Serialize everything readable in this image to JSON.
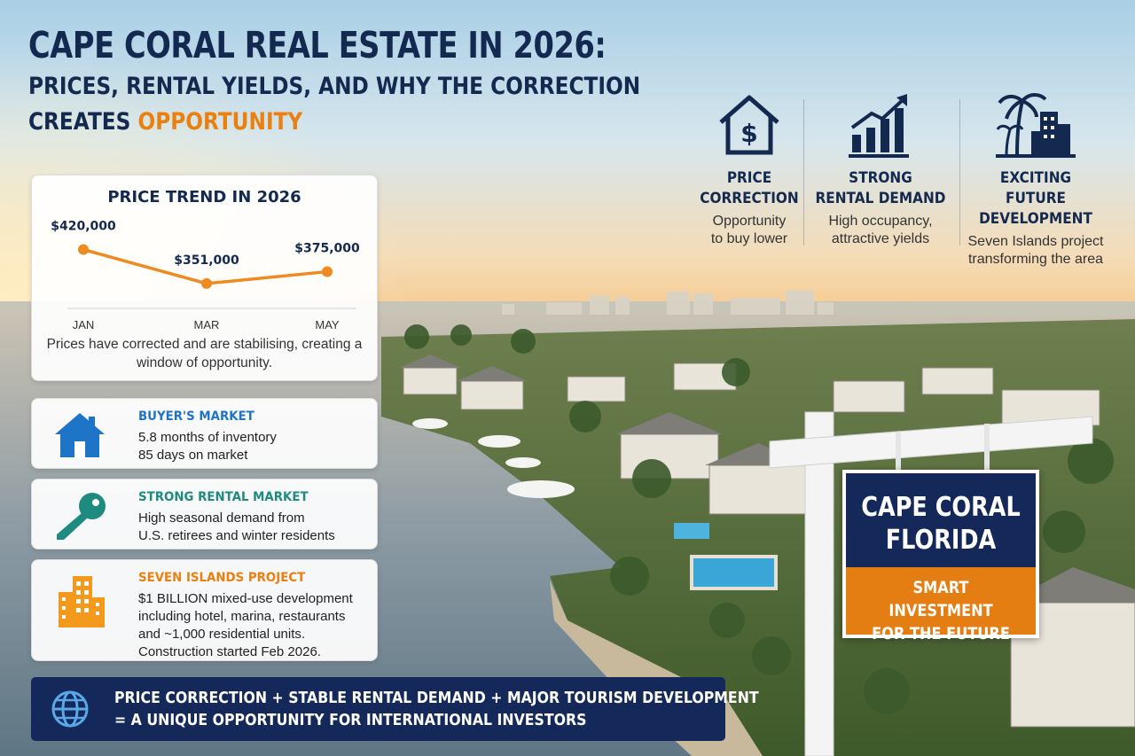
{
  "header": {
    "title": "CAPE CORAL REAL ESTATE IN 2026:",
    "subtitle_line1": "PRICES, RENTAL YIELDS, AND WHY THE CORRECTION",
    "subtitle_line2_prefix": "CREATES ",
    "subtitle_line2_accent": "OPPORTUNITY"
  },
  "features": [
    {
      "icon": "house-dollar-icon",
      "title": "PRICE\nCORRECTION",
      "desc": "Opportunity\nto buy lower"
    },
    {
      "icon": "rising-bars-icon",
      "title": "STRONG\nRENTAL DEMAND",
      "desc": "High occupancy,\nattractive yields"
    },
    {
      "icon": "palm-city-icon",
      "title": "EXCITING FUTURE\nDEVELOPMENT",
      "desc": "Seven Islands project\ntransforming the area"
    }
  ],
  "price_trend": {
    "title": "PRICE TREND IN 2026",
    "caption": "Prices have corrected and are stabilising, creating a window of opportunity."
  },
  "chart_data": {
    "type": "line",
    "title": "PRICE TREND IN 2026",
    "categories": [
      "JAN",
      "MAR",
      "MAY"
    ],
    "values": [
      420000,
      351000,
      375000
    ],
    "data_labels": [
      "$420,000",
      "$351,000",
      "$375,000"
    ],
    "grid": false,
    "line_color": "#ee8a1f"
  },
  "cards": [
    {
      "icon": "house-icon",
      "title": "BUYER'S MARKET",
      "title_color": "#1e74c6",
      "lines": [
        "5.8 months of inventory",
        "85 days on market"
      ]
    },
    {
      "icon": "key-icon",
      "title": "STRONG RENTAL MARKET",
      "title_color": "#1f8a7f",
      "lines": [
        "High seasonal demand from",
        "U.S. retirees and winter residents"
      ]
    },
    {
      "icon": "buildings-icon",
      "title": "SEVEN ISLANDS PROJECT",
      "title_color": "#e9800f",
      "lines": [
        "$1 BILLION mixed-use development",
        "including hotel, marina, restaurants",
        "and ~1,000 residential units.",
        "Construction started Feb 2026."
      ]
    }
  ],
  "banner": {
    "icon": "globe-icon",
    "line1": "PRICE CORRECTION + STABLE RENTAL DEMAND + MAJOR TOURISM DEVELOPMENT",
    "line2": "= A UNIQUE OPPORTUNITY FOR INTERNATIONAL INVESTORS"
  },
  "sign": {
    "line1": "CAPE CORAL",
    "line2": "FLORIDA",
    "tagline1": "SMART INVESTMENT",
    "tagline2": "FOR THE FUTURE"
  },
  "colors": {
    "navy": "#14294f",
    "orange": "#e9800f",
    "blue": "#1e74c6",
    "teal": "#1f8a7f"
  }
}
